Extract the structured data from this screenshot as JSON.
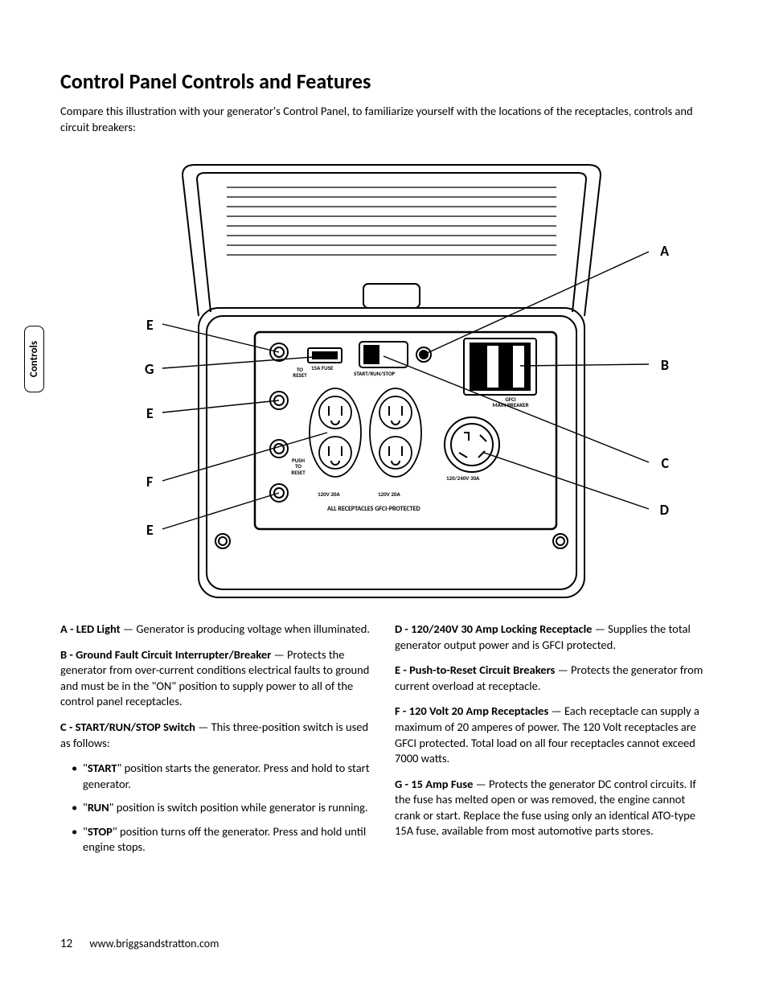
{
  "title": "Control Panel Controls and Features",
  "intro": "Compare this illustration with your generator's Control Panel, to familiarize yourself with the locations of the receptacles, controls and circuit breakers:",
  "side_tab": "Controls",
  "callout_letters": {
    "A": "A",
    "B": "B",
    "C": "C",
    "D": "D",
    "E": "E",
    "F": "F",
    "G": "G"
  },
  "diagram_labels": {
    "to_reset": "TO\nRESET",
    "push_to_reset": "PUSH\nTO\nRESET",
    "fuse": "15A FUSE",
    "start_run_stop": "START/RUN/STOP",
    "gfci": "GFCI\nMAIN BREAKER",
    "recept_120_20": "120V 20A",
    "recept_120240_30": "120/240V 30A",
    "all_protected": "ALL RECEPTACLES GFCI-PROTECTED"
  },
  "defs": {
    "A": {
      "term": "A - LED Light",
      "text": " — Generator is producing voltage when illuminated."
    },
    "B": {
      "term": "B - Ground Fault Circuit Interrupter/Breaker",
      "text": " — Protects the generator from over-current conditions electrical faults to ground and must be in the \"ON\" position to supply power to all of the control panel receptacles."
    },
    "C": {
      "term": "C - START/RUN/STOP Switch",
      "text": " — This three-position switch is used as follows:"
    },
    "C_sub": [
      {
        "b": "START",
        "t": "\" position starts the generator. Press and hold to start generator."
      },
      {
        "b": "RUN",
        "t": "\" position is switch position while generator is running."
      },
      {
        "b": "STOP",
        "t": "\" position turns off the generator. Press and hold until engine stops."
      }
    ],
    "D": {
      "term": "D - 120/240V 30 Amp Locking Receptacle",
      "text": " — Supplies the total generator output power and is GFCI protected."
    },
    "E": {
      "term": "E - Push-to-Reset Circuit Breakers",
      "text": " — Protects the generator from current overload at receptacle."
    },
    "F": {
      "term": "F - 120 Volt 20 Amp Receptacles",
      "text": " — Each receptacle can supply a maximum of 20 amperes of power. The 120 Volt receptacles are GFCI protected. Total load on all four receptacles cannot exceed 7000 watts."
    },
    "G": {
      "term": "G - 15 Amp Fuse",
      "text": " — Protects the generator DC control circuits. If the fuse has melted open or was removed, the engine cannot crank or start. Replace the fuse using only an identical ATO-type 15A fuse, available from most automotive parts stores."
    }
  },
  "footer": {
    "page": "12",
    "url": "www.briggsandstratton.com"
  }
}
